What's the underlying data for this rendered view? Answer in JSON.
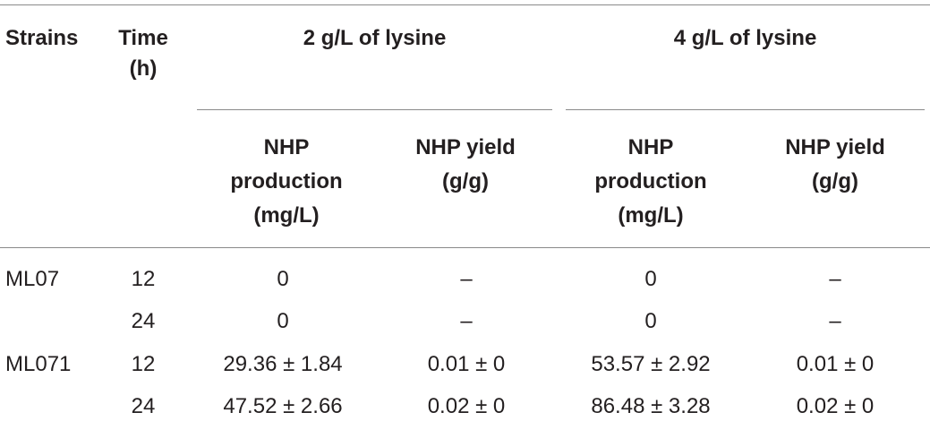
{
  "table": {
    "headers": {
      "strains": "Strains",
      "time": "Time",
      "time_unit": "(h)",
      "group1": "2 g/L of lysine",
      "group2": "4 g/L of lysine",
      "production": [
        "NHP",
        "production",
        "(mg/L)"
      ],
      "yield": [
        "NHP yield",
        "(g/g)"
      ]
    },
    "rows": [
      {
        "strain": "ML07",
        "time": "12",
        "p2": "0",
        "y2": "–",
        "p4": "0",
        "y4": "–"
      },
      {
        "strain": "",
        "time": "24",
        "p2": "0",
        "y2": "–",
        "p4": "0",
        "y4": "–"
      },
      {
        "strain": "ML071",
        "time": "12",
        "p2": "29.36 ± 1.84",
        "y2": "0.01 ± 0",
        "p4": "53.57 ± 2.92",
        "y4": "0.01 ± 0"
      },
      {
        "strain": "",
        "time": "24",
        "p2": "47.52 ± 2.66",
        "y2": "0.02 ± 0",
        "p4": "86.48 ± 3.28",
        "y4": "0.02 ± 0"
      }
    ]
  }
}
